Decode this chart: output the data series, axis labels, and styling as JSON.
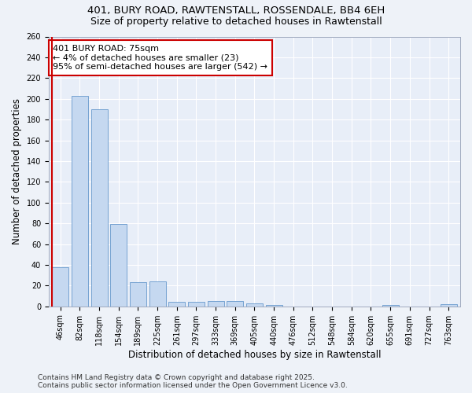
{
  "title_line1": "401, BURY ROAD, RAWTENSTALL, ROSSENDALE, BB4 6EH",
  "title_line2": "Size of property relative to detached houses in Rawtenstall",
  "xlabel": "Distribution of detached houses by size in Rawtenstall",
  "ylabel": "Number of detached properties",
  "categories": [
    "46sqm",
    "82sqm",
    "118sqm",
    "154sqm",
    "189sqm",
    "225sqm",
    "261sqm",
    "297sqm",
    "333sqm",
    "369sqm",
    "405sqm",
    "440sqm",
    "476sqm",
    "512sqm",
    "548sqm",
    "584sqm",
    "620sqm",
    "655sqm",
    "691sqm",
    "727sqm",
    "763sqm"
  ],
  "values": [
    38,
    203,
    190,
    79,
    23,
    24,
    4,
    4,
    5,
    5,
    3,
    1,
    0,
    0,
    0,
    0,
    0,
    1,
    0,
    0,
    2
  ],
  "bar_color": "#c5d8f0",
  "bar_edge_color": "#6699cc",
  "vline_color": "#cc0000",
  "annotation_text": "401 BURY ROAD: 75sqm\n← 4% of detached houses are smaller (23)\n95% of semi-detached houses are larger (542) →",
  "annotation_box_color": "#ffffff",
  "annotation_box_edge": "#cc0000",
  "ylim": [
    0,
    260
  ],
  "yticks": [
    0,
    20,
    40,
    60,
    80,
    100,
    120,
    140,
    160,
    180,
    200,
    220,
    240,
    260
  ],
  "footer_line1": "Contains HM Land Registry data © Crown copyright and database right 2025.",
  "footer_line2": "Contains public sector information licensed under the Open Government Licence v3.0.",
  "bg_color": "#eef2f8",
  "plot_bg_color": "#e8eef8",
  "grid_color": "#ffffff",
  "title_fontsize": 9.5,
  "subtitle_fontsize": 9,
  "axis_label_fontsize": 8.5,
  "tick_fontsize": 7,
  "annotation_fontsize": 8,
  "footer_fontsize": 6.5
}
